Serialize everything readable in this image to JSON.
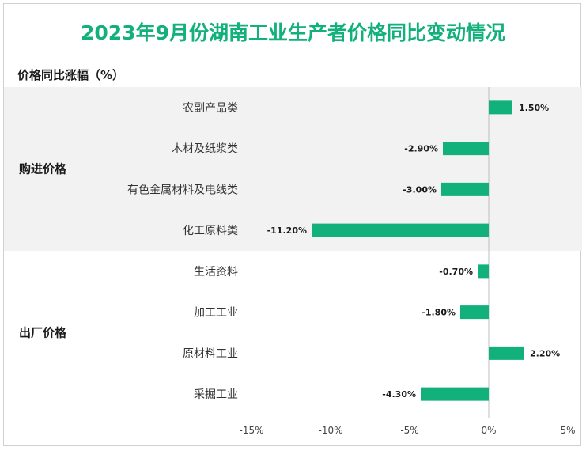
{
  "chart_data": {
    "type": "bar",
    "orientation": "horizontal",
    "title": "2023年9月份湖南工业生产者价格同比变动情况",
    "ylabel": "价格同比涨幅（%）",
    "groups": [
      {
        "name": "购进价格",
        "categories": [
          "农副产品类",
          "木材及纸浆类",
          "有色金属材料及电线类",
          "化工原料类"
        ],
        "values": [
          1.5,
          -2.9,
          -3.0,
          -11.2
        ],
        "labels": [
          "1.50%",
          "-2.90%",
          "-3.00%",
          "-11.20%"
        ]
      },
      {
        "name": "出厂价格",
        "categories": [
          "生活资料",
          "加工工业",
          "原材料工业",
          "采掘工业"
        ],
        "values": [
          -0.7,
          -1.8,
          2.2,
          -4.3
        ],
        "labels": [
          "-0.70%",
          "-1.80%",
          "2.20%",
          "-4.30%"
        ]
      }
    ],
    "xlim": [
      -15,
      5
    ],
    "xticks": [
      -15,
      -10,
      -5,
      0,
      5
    ],
    "xtick_labels": [
      "-15%",
      "-10%",
      "-5%",
      "0%",
      "5%"
    ],
    "colors": {
      "bar": "#12b07a",
      "title": "#12b07a",
      "band": "#f2f2f2"
    }
  }
}
